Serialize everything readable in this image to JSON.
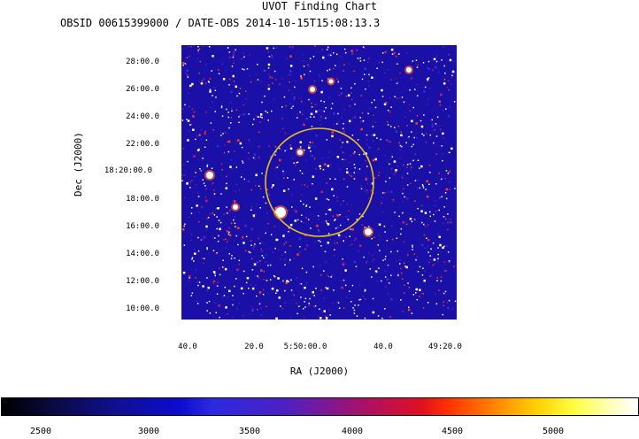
{
  "header": {
    "title": "UVOT Finding Chart",
    "subtitle": "OBSID 00615399000 / DATE-OBS 2014-10-15T15:08:13.3"
  },
  "chart_data": {
    "type": "heatmap",
    "title": "UVOT Finding Chart",
    "subtitle": "OBSID 00615399000 / DATE-OBS 2014-10-15T15:08:13.3",
    "xlabel": "RA (J2000)",
    "ylabel": "Dec (J2000)",
    "x_ticks": [
      "40.0",
      "20.0",
      "5:50:00.0",
      "40.0",
      "49:20.0"
    ],
    "y_ticks": [
      "28:00.0",
      "26:00.0",
      "24:00.0",
      "22:00.0",
      "18:20:00.0",
      "18:00.0",
      "16:00.0",
      "14:00.0",
      "12:00.0",
      "10:00.0"
    ],
    "colorbar": {
      "ticks": [
        "2500",
        "3000",
        "3500",
        "4000",
        "4500",
        "5000"
      ],
      "colormap": "black-blue-red-yellow-white"
    },
    "circle": {
      "color": "#e8c020"
    }
  }
}
